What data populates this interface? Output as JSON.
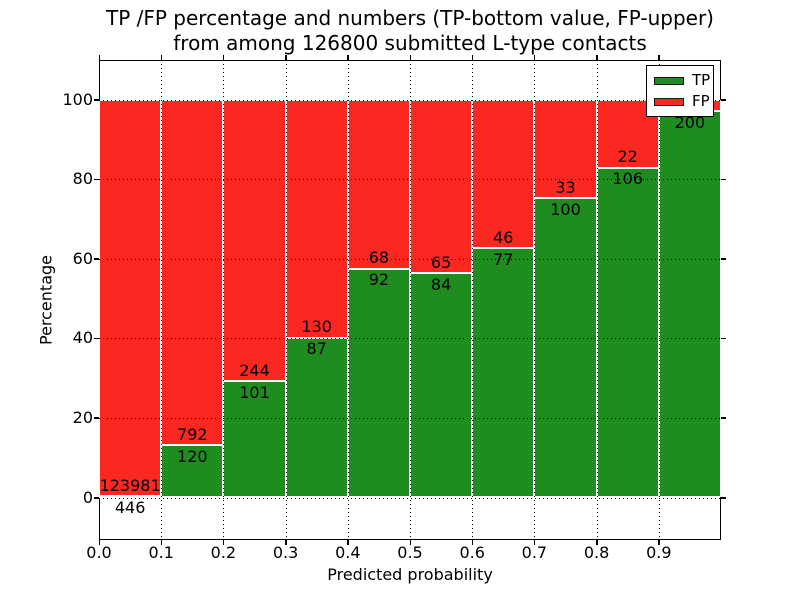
{
  "title": {
    "line1": "TP /FP percentage and numbers (TP-bottom value, FP-upper)",
    "line2": "from among 126800 submitted L-type contacts"
  },
  "axes": {
    "xlabel": "Predicted probability",
    "ylabel": "Percentage",
    "x_tick_labels": [
      "0.0",
      "0.1",
      "0.2",
      "0.3",
      "0.4",
      "0.5",
      "0.6",
      "0.7",
      "0.8",
      "0.9"
    ],
    "y_tick_labels": [
      "0",
      "20",
      "40",
      "60",
      "80",
      "100"
    ],
    "y_tick_values": [
      0,
      20,
      40,
      60,
      80,
      100
    ]
  },
  "legend": {
    "items": [
      {
        "label": "TP",
        "color": "#1e8c1e"
      },
      {
        "label": "FP",
        "color": "#fa2820"
      }
    ]
  },
  "colors": {
    "tp": "#1e8c1e",
    "fp": "#fa2820",
    "grid": "#000000",
    "background": "#ffffff"
  },
  "chart_data": {
    "type": "bar",
    "stacked": true,
    "normalized_to_percent": true,
    "title": "TP /FP percentage and numbers (TP-bottom value, FP-upper) from among 126800 submitted L-type contacts",
    "xlabel": "Predicted probability",
    "ylabel": "Percentage",
    "xlim": [
      0.0,
      1.0
    ],
    "ylim": [
      -11,
      110
    ],
    "grid": true,
    "legend_position": "upper right",
    "total_contacts": 126800,
    "bin_width": 0.1,
    "series": [
      {
        "name": "TP",
        "role": "bottom",
        "color": "#1e8c1e"
      },
      {
        "name": "FP",
        "role": "top",
        "color": "#fa2820"
      }
    ],
    "bins": [
      {
        "x0": 0.0,
        "x1": 0.1,
        "tp": 446,
        "fp": 123981,
        "tp_label": "446",
        "fp_label": "123981",
        "fp_label_visible": true
      },
      {
        "x0": 0.1,
        "x1": 0.2,
        "tp": 120,
        "fp": 792,
        "tp_label": "120",
        "fp_label": "792",
        "fp_label_visible": true
      },
      {
        "x0": 0.2,
        "x1": 0.3,
        "tp": 101,
        "fp": 244,
        "tp_label": "101",
        "fp_label": "244",
        "fp_label_visible": true
      },
      {
        "x0": 0.3,
        "x1": 0.4,
        "tp": 87,
        "fp": 130,
        "tp_label": "87",
        "fp_label": "130",
        "fp_label_visible": true
      },
      {
        "x0": 0.4,
        "x1": 0.5,
        "tp": 92,
        "fp": 68,
        "tp_label": "92",
        "fp_label": "68",
        "fp_label_visible": true
      },
      {
        "x0": 0.5,
        "x1": 0.6,
        "tp": 84,
        "fp": 65,
        "tp_label": "84",
        "fp_label": "65",
        "fp_label_visible": true
      },
      {
        "x0": 0.6,
        "x1": 0.7,
        "tp": 77,
        "fp": 46,
        "tp_label": "77",
        "fp_label": "46",
        "fp_label_visible": true
      },
      {
        "x0": 0.7,
        "x1": 0.8,
        "tp": 100,
        "fp": 33,
        "tp_label": "100",
        "fp_label": "33",
        "fp_label_visible": true
      },
      {
        "x0": 0.8,
        "x1": 0.9,
        "tp": 106,
        "fp": 22,
        "tp_label": "106",
        "fp_label": "22",
        "fp_label_visible": true
      },
      {
        "x0": 0.9,
        "x1": 1.0,
        "tp": 200,
        "fp": 6,
        "tp_label": "200",
        "fp_label": "",
        "fp_label_visible": false
      }
    ]
  }
}
